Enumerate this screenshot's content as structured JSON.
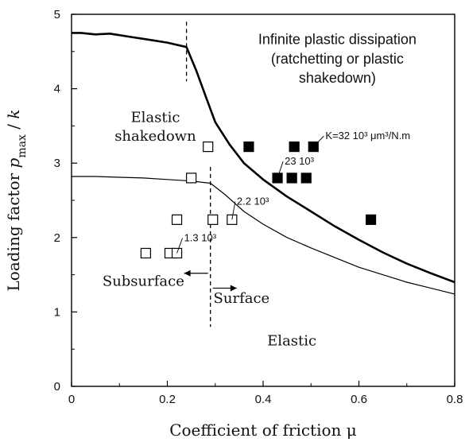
{
  "chart_data": {
    "type": "scatter",
    "title": "",
    "xlabel": "Coefficient of friction μ",
    "ylabel": "Loading factor p_max / k",
    "xlim": [
      0,
      0.8
    ],
    "ylim": [
      0,
      5
    ],
    "x_ticks": [
      "0",
      "0.2",
      "0.4",
      "0.6",
      "0.8"
    ],
    "y_ticks": [
      "0",
      "1",
      "2",
      "3",
      "4",
      "5"
    ],
    "x_tick_values": [
      0,
      0.2,
      0.4,
      0.6,
      0.8
    ],
    "y_tick_values": [
      0,
      1,
      2,
      3,
      4,
      5
    ],
    "grid": false,
    "series": [
      {
        "name": "",
        "kind": "line",
        "style": "thick",
        "points": [
          [
            0,
            4.75
          ],
          [
            0.02,
            4.75
          ],
          [
            0.05,
            4.73
          ],
          [
            0.08,
            4.74
          ],
          [
            0.12,
            4.7
          ],
          [
            0.16,
            4.66
          ],
          [
            0.2,
            4.62
          ],
          [
            0.24,
            4.56
          ],
          [
            0.26,
            4.25
          ],
          [
            0.28,
            3.9
          ],
          [
            0.3,
            3.55
          ],
          [
            0.33,
            3.25
          ],
          [
            0.36,
            3.0
          ],
          [
            0.4,
            2.78
          ],
          [
            0.45,
            2.55
          ],
          [
            0.5,
            2.35
          ],
          [
            0.55,
            2.15
          ],
          [
            0.6,
            1.97
          ],
          [
            0.65,
            1.8
          ],
          [
            0.7,
            1.65
          ],
          [
            0.75,
            1.52
          ],
          [
            0.8,
            1.4
          ]
        ]
      },
      {
        "name": "",
        "kind": "line",
        "style": "thin",
        "points": [
          [
            0,
            2.82
          ],
          [
            0.05,
            2.82
          ],
          [
            0.1,
            2.81
          ],
          [
            0.15,
            2.8
          ],
          [
            0.2,
            2.78
          ],
          [
            0.25,
            2.76
          ],
          [
            0.29,
            2.73
          ],
          [
            0.32,
            2.58
          ],
          [
            0.36,
            2.35
          ],
          [
            0.4,
            2.18
          ],
          [
            0.45,
            2.0
          ],
          [
            0.5,
            1.86
          ],
          [
            0.55,
            1.73
          ],
          [
            0.6,
            1.6
          ],
          [
            0.65,
            1.5
          ],
          [
            0.7,
            1.4
          ],
          [
            0.75,
            1.32
          ],
          [
            0.8,
            1.24
          ]
        ]
      },
      {
        "name": "",
        "kind": "line",
        "style": "dashed",
        "points": [
          [
            0.24,
            4.9
          ],
          [
            0.24,
            4.1
          ]
        ]
      },
      {
        "name": "",
        "kind": "line",
        "style": "dashed",
        "points": [
          [
            0.29,
            2.95
          ],
          [
            0.29,
            0.8
          ]
        ]
      },
      {
        "name": "",
        "kind": "scatter",
        "marker": "open-square",
        "points": [
          [
            0.285,
            3.22
          ],
          [
            0.25,
            2.8
          ],
          [
            0.22,
            2.24
          ],
          [
            0.295,
            2.24
          ],
          [
            0.335,
            2.24
          ],
          [
            0.155,
            1.79
          ],
          [
            0.205,
            1.79
          ],
          [
            0.22,
            1.79
          ]
        ]
      },
      {
        "name": "",
        "kind": "scatter",
        "marker": "filled-square",
        "points": [
          [
            0.37,
            3.22
          ],
          [
            0.465,
            3.22
          ],
          [
            0.505,
            3.22
          ],
          [
            0.43,
            2.8
          ],
          [
            0.46,
            2.8
          ],
          [
            0.49,
            2.8
          ],
          [
            0.625,
            2.24
          ]
        ]
      }
    ],
    "point_labels": [
      {
        "text": "K=32 10³ μm³/N.m",
        "x": 0.53,
        "y": 3.32,
        "leader_to": [
          0.505,
          3.22
        ]
      },
      {
        "text": "23 10³",
        "x": 0.445,
        "y": 2.98,
        "leader_to": [
          0.43,
          2.8
        ]
      },
      {
        "text": "2.2 10³",
        "x": 0.345,
        "y": 2.44,
        "leader_to": [
          0.335,
          2.24
        ]
      },
      {
        "text": "1.3 10³",
        "x": 0.235,
        "y": 1.95,
        "leader_to": [
          0.22,
          1.79
        ]
      }
    ],
    "annotations": [
      {
        "text": "Infinite plastic dissipation",
        "style": "sans",
        "x": 0.555,
        "y": 4.6
      },
      {
        "text": "(ratchetting or plastic",
        "style": "sans",
        "x": 0.555,
        "y": 4.34
      },
      {
        "text": "shakedown)",
        "style": "sans",
        "x": 0.555,
        "y": 4.08
      },
      {
        "text": "Elastic",
        "style": "serif",
        "x": 0.175,
        "y": 3.55
      },
      {
        "text": "shakedown",
        "style": "serif",
        "x": 0.175,
        "y": 3.3
      },
      {
        "text": "Subsurface",
        "style": "serif",
        "x": 0.15,
        "y": 1.35
      },
      {
        "text": "Surface",
        "style": "serif",
        "x": 0.355,
        "y": 1.12
      },
      {
        "text": "Elastic",
        "style": "serif",
        "x": 0.46,
        "y": 0.55
      }
    ],
    "arrows": [
      {
        "from": [
          0.285,
          1.52
        ],
        "to": [
          0.235,
          1.52
        ]
      },
      {
        "from": [
          0.295,
          1.32
        ],
        "to": [
          0.345,
          1.32
        ]
      }
    ]
  }
}
